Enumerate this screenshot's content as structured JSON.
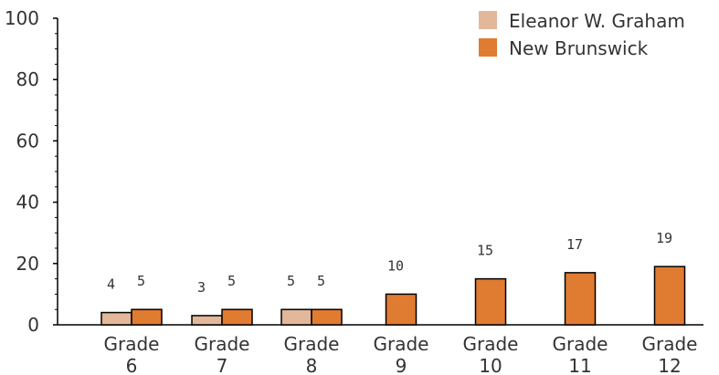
{
  "chart_data": {
    "type": "bar",
    "categories": [
      "Grade 6",
      "Grade 7",
      "Grade 8",
      "Grade 9",
      "Grade 10",
      "Grade 11",
      "Grade 12"
    ],
    "category_lines": [
      [
        "Grade",
        "6"
      ],
      [
        "Grade",
        "7"
      ],
      [
        "Grade",
        "8"
      ],
      [
        "Grade",
        "9"
      ],
      [
        "Grade",
        "10"
      ],
      [
        "Grade",
        "11"
      ],
      [
        "Grade",
        "12"
      ]
    ],
    "series": [
      {
        "name": "Eleanor W. Graham",
        "color": "#e3b79a",
        "values": [
          4,
          3,
          5,
          null,
          null,
          null,
          null
        ]
      },
      {
        "name": "New Brunswick",
        "color": "#e07b32",
        "values": [
          5,
          5,
          5,
          10,
          15,
          17,
          19
        ]
      }
    ],
    "ylim": [
      0,
      100
    ],
    "yticks": [
      0,
      20,
      40,
      60,
      80,
      100
    ],
    "grid": false,
    "legend_position": "top-right",
    "title": "",
    "xlabel": "",
    "ylabel": ""
  }
}
